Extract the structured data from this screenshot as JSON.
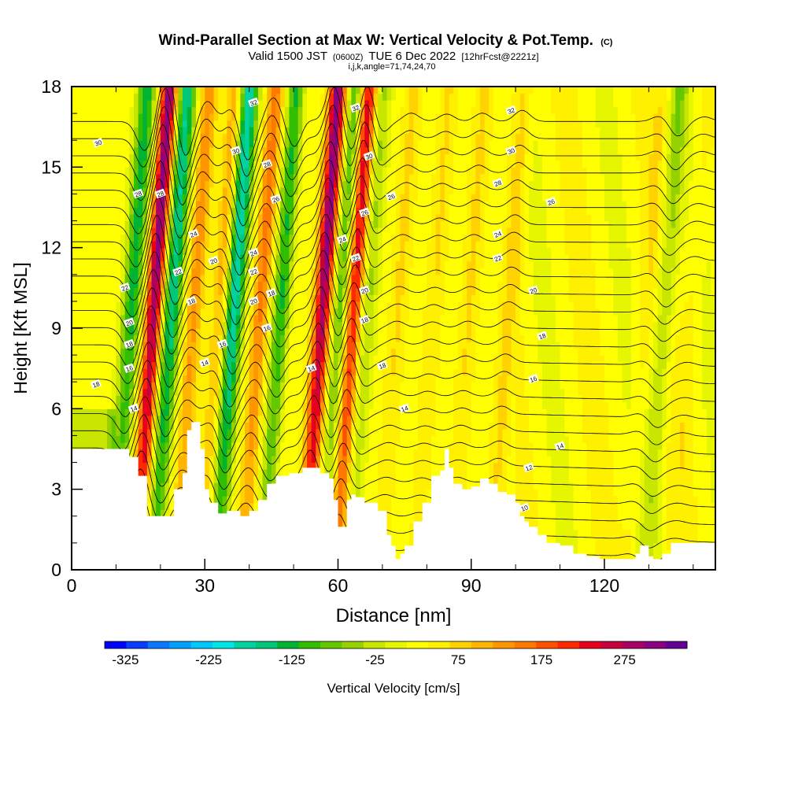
{
  "chart_data": {
    "type": "heatmap",
    "title": "Wind-Parallel Section at Max W: Vertical Velocity & Pot.Temp.",
    "title_mark": "(C)",
    "subtitle": {
      "valid_prefix": "Valid 1500 JST",
      "utc": "(0600Z)",
      "date": "TUE 6 Dec 2022",
      "forecast": "[12hrFcst@2221z]"
    },
    "params_line": "i,j,k,angle=71,74,24,70",
    "xlabel": "Distance [nm]",
    "ylabel": "Height [Kft MSL]",
    "xlim": [
      0,
      145
    ],
    "ylim": [
      0,
      18
    ],
    "x_ticks": [
      "0",
      "30",
      "60",
      "90",
      "120"
    ],
    "y_ticks": [
      "0",
      "3",
      "6",
      "9",
      "12",
      "15",
      "18"
    ],
    "colorbar": {
      "label": "Vertical Velocity [cm/s]",
      "range": [
        -350,
        350
      ],
      "tick_labels": [
        "-325",
        "-225",
        "-125",
        "-25",
        "75",
        "175",
        "275"
      ],
      "colors": [
        "#0000ff",
        "#0a3cff",
        "#0a78ff",
        "#00a0ff",
        "#00c8ff",
        "#00e6e6",
        "#00d2a0",
        "#00c878",
        "#00b432",
        "#32be00",
        "#64c800",
        "#96d200",
        "#c8e600",
        "#e6f500",
        "#ffff00",
        "#fff000",
        "#ffd200",
        "#ffb400",
        "#ff9600",
        "#ff7800",
        "#ff5000",
        "#ff2800",
        "#e6001e",
        "#c8003c",
        "#aa0064",
        "#8c0082",
        "#640096"
      ]
    },
    "updrafts_cm_s": [
      {
        "x": 17,
        "peak": 290
      },
      {
        "x": 26,
        "peak": 110
      },
      {
        "x": 32,
        "peak": 90
      },
      {
        "x": 41,
        "peak": 130
      },
      {
        "x": 47,
        "peak": 80
      },
      {
        "x": 55,
        "peak": 290
      },
      {
        "x": 62,
        "peak": 230
      },
      {
        "x": 72,
        "peak": 45
      },
      {
        "x": 80,
        "peak": 40
      },
      {
        "x": 88,
        "peak": 45
      },
      {
        "x": 97,
        "peak": 60
      },
      {
        "x": 128,
        "peak": 30
      },
      {
        "x": 138,
        "peak": 25
      }
    ],
    "downdrafts_cm_s": [
      {
        "x": 12,
        "peak": -160
      },
      {
        "x": 21,
        "peak": -200
      },
      {
        "x": 35,
        "peak": -225
      },
      {
        "x": 46,
        "peak": -200
      },
      {
        "x": 59,
        "peak": -120
      },
      {
        "x": 65,
        "peak": -80
      },
      {
        "x": 132,
        "peak": -80
      }
    ],
    "terrain_kft": {
      "x": [
        0,
        10,
        13,
        15,
        17,
        19,
        21,
        23,
        25,
        26,
        27,
        28,
        29,
        30,
        31,
        33,
        35,
        37,
        38,
        40,
        42,
        44,
        46,
        49,
        52,
        54,
        56,
        58,
        59,
        60,
        61,
        62,
        63,
        64,
        66,
        69,
        71,
        72,
        73,
        74,
        75,
        77,
        79,
        81,
        83,
        84,
        85,
        86,
        88,
        90,
        92,
        94,
        96,
        98,
        100,
        101,
        102,
        103,
        105,
        107,
        110,
        113,
        116,
        119,
        122,
        125,
        127,
        128,
        130,
        131,
        133,
        135,
        138,
        140,
        145
      ],
      "h": [
        4.5,
        4.5,
        4.2,
        3.5,
        2.0,
        2.0,
        2.0,
        3.0,
        3.6,
        5.2,
        5.5,
        5.5,
        4.5,
        3.0,
        2.5,
        2.1,
        2.2,
        2.2,
        2.0,
        2.2,
        2.6,
        3.2,
        3.5,
        3.6,
        3.8,
        3.8,
        3.6,
        3.4,
        2.6,
        1.6,
        1.6,
        2.6,
        2.8,
        2.7,
        2.5,
        2.2,
        1.3,
        0.9,
        0.4,
        0.6,
        0.9,
        1.8,
        2.5,
        3.5,
        3.7,
        4.5,
        3.8,
        3.2,
        3.0,
        3.1,
        3.4,
        3.2,
        2.9,
        2.8,
        2.5,
        2.0,
        1.8,
        1.6,
        1.3,
        1.0,
        0.9,
        0.6,
        0.5,
        0.4,
        0.4,
        0.4,
        0.6,
        0.9,
        0.5,
        0.4,
        0.6,
        1.0,
        1.0,
        1.0,
        1.0
      ]
    },
    "contour_levels_labeled": [
      "10",
      "12",
      "14",
      "16",
      "18",
      "20",
      "22",
      "24",
      "26",
      "28",
      "30",
      "32"
    ],
    "contour_labels": [
      {
        "text": "30",
        "x": 6,
        "y": 15.9
      },
      {
        "text": "18",
        "x": 5.5,
        "y": 6.9
      },
      {
        "text": "22",
        "x": 12,
        "y": 10.5
      },
      {
        "text": "20",
        "x": 13,
        "y": 9.2
      },
      {
        "text": "18",
        "x": 13,
        "y": 8.4
      },
      {
        "text": "16",
        "x": 13,
        "y": 7.5
      },
      {
        "text": "14",
        "x": 14,
        "y": 6.0
      },
      {
        "text": "28",
        "x": 15,
        "y": 14.0
      },
      {
        "text": "28",
        "x": 20,
        "y": 14.0
      },
      {
        "text": "24",
        "x": 27.5,
        "y": 12.5
      },
      {
        "text": "22",
        "x": 24,
        "y": 11.1
      },
      {
        "text": "20",
        "x": 32,
        "y": 11.5
      },
      {
        "text": "18",
        "x": 27,
        "y": 10.0
      },
      {
        "text": "16",
        "x": 34,
        "y": 8.4
      },
      {
        "text": "14",
        "x": 30,
        "y": 7.7
      },
      {
        "text": "32",
        "x": 41,
        "y": 17.4
      },
      {
        "text": "30",
        "x": 37,
        "y": 15.6
      },
      {
        "text": "28",
        "x": 44,
        "y": 15.1
      },
      {
        "text": "26",
        "x": 46,
        "y": 13.8
      },
      {
        "text": "24",
        "x": 41,
        "y": 11.8
      },
      {
        "text": "22",
        "x": 41,
        "y": 11.1
      },
      {
        "text": "20",
        "x": 41,
        "y": 10.0
      },
      {
        "text": "18",
        "x": 45,
        "y": 10.3
      },
      {
        "text": "16",
        "x": 44,
        "y": 9.0
      },
      {
        "text": "14",
        "x": 54,
        "y": 7.5
      },
      {
        "text": "32",
        "x": 64,
        "y": 17.2
      },
      {
        "text": "30",
        "x": 67,
        "y": 15.4
      },
      {
        "text": "26",
        "x": 66,
        "y": 13.3
      },
      {
        "text": "26",
        "x": 72,
        "y": 13.9
      },
      {
        "text": "24",
        "x": 61,
        "y": 12.3
      },
      {
        "text": "22",
        "x": 64,
        "y": 11.6
      },
      {
        "text": "20",
        "x": 66,
        "y": 10.4
      },
      {
        "text": "18",
        "x": 66,
        "y": 9.3
      },
      {
        "text": "18",
        "x": 70,
        "y": 7.6
      },
      {
        "text": "14",
        "x": 75,
        "y": 6.0
      },
      {
        "text": "32",
        "x": 99,
        "y": 17.1
      },
      {
        "text": "30",
        "x": 99,
        "y": 15.6
      },
      {
        "text": "28",
        "x": 96,
        "y": 14.4
      },
      {
        "text": "26",
        "x": 108,
        "y": 13.7
      },
      {
        "text": "24",
        "x": 96,
        "y": 12.5
      },
      {
        "text": "22",
        "x": 96,
        "y": 11.6
      },
      {
        "text": "20",
        "x": 104,
        "y": 10.4
      },
      {
        "text": "18",
        "x": 106,
        "y": 8.7
      },
      {
        "text": "16",
        "x": 104,
        "y": 7.1
      },
      {
        "text": "14",
        "x": 110,
        "y": 4.6
      },
      {
        "text": "12",
        "x": 103,
        "y": 3.8
      },
      {
        "text": "10",
        "x": 102,
        "y": 2.3
      }
    ]
  }
}
